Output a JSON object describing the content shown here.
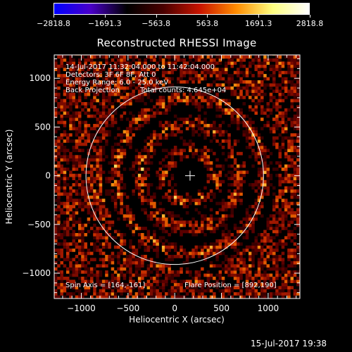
{
  "chart_data": {
    "type": "heatmap",
    "title": "Reconstructed RHESSI Image",
    "xlabel": "Heliocentric X (arcsec)",
    "ylabel": "Heliocentric Y (arcsec)",
    "xlim": [
      -1290,
      1340
    ],
    "ylim": [
      -1260,
      1240
    ],
    "xticks": [
      -1000,
      -500,
      0,
      500,
      1000
    ],
    "yticks": [
      -1000,
      -500,
      0,
      500,
      1000
    ],
    "xtick_labels": [
      "−1000",
      "−500",
      "0",
      "500",
      "1000"
    ],
    "ytick_labels": [
      "−1000",
      "−500",
      "0",
      "500",
      "1000"
    ],
    "colorbar": {
      "range": [
        -2818.8,
        2818.8
      ],
      "tick_labels": [
        "−2818.8",
        "−1691.3",
        "−563.8",
        "563.8",
        "1691.3",
        "2818.8"
      ],
      "colormap": [
        "#0000ff",
        "#4a00c8",
        "#000000",
        "#4a0000",
        "#c81400",
        "#ff8c00",
        "#ffff80",
        "#ffffff"
      ]
    },
    "annotations": {
      "time_range": "14-Jul-2017 11:32:04.000 to 11:42:04.000",
      "detectors": "Detectors: 3F 6F 8F, Att 0",
      "energy_range": "Energy Range: 6.0 - 25.0 keV",
      "method": "Back Projection",
      "total_counts": "Total counts: 4.645e+04",
      "spin_axis": "Spin Axis = [164,-161]",
      "flare_position": "Flare Position = [892,190]"
    },
    "solar_limb_radius_arcsec": 950,
    "crosshair_center": [
      164,
      0
    ],
    "colors": {
      "limb": "#ffffff",
      "background": "#000000"
    }
  },
  "timestamp": "15-Jul-2017 19:38"
}
